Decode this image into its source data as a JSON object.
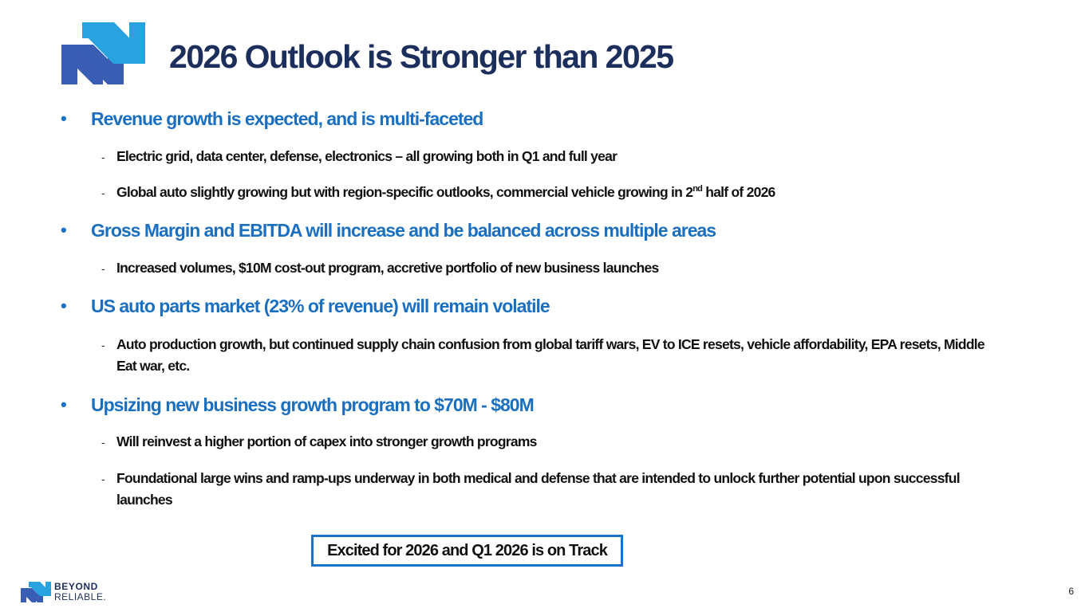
{
  "title": "2026 Outlook is Stronger than 2025",
  "colors": {
    "title": "#1c2e5b",
    "bullet": "#1a6fc0",
    "accent": "#1a73c6",
    "text": "#111111"
  },
  "bullets": [
    {
      "dot": "•",
      "text": "Revenue growth is expected, and is multi-faceted",
      "subs": [
        {
          "dash": "-",
          "text": "Electric grid, data center, defense, electronics – all growing both in Q1 and full year"
        },
        {
          "dash": "-",
          "text_before": "Global auto slightly growing but with region-specific outlooks, commercial vehicle growing in 2",
          "sup": "nd",
          "text_after": " half of 2026"
        }
      ]
    },
    {
      "dot": "•",
      "text": "Gross Margin and EBITDA will increase and be balanced across multiple areas",
      "subs": [
        {
          "dash": "-",
          "text": "Increased volumes, $10M cost-out program, accretive portfolio of new business launches"
        }
      ]
    },
    {
      "dot": "•",
      "text": "US auto parts market (23% of revenue) will remain volatile",
      "subs": [
        {
          "dash": "-",
          "text": "Auto production growth, but continued supply chain confusion from global tariff wars, EV to ICE resets, vehicle affordability, EPA resets, Middle Eat war, etc."
        }
      ]
    },
    {
      "dot": "•",
      "text": "Upsizing new business growth program to $70M - $80M",
      "subs": [
        {
          "dash": "-",
          "text": "Will reinvest a higher portion of capex into stronger growth programs"
        },
        {
          "dash": "-",
          "text": "Foundational large wins and ramp-ups underway in both medical and defense that are intended to unlock further potential upon successful launches"
        }
      ]
    }
  ],
  "callout": "Excited for 2026 and Q1 2026 is on Track",
  "footer": {
    "logo_line1": "BEYOND",
    "logo_line2": "RELIABLE.",
    "logo_icon": "nn-logo-icon"
  },
  "header_logo_icon": "nn-logo-icon",
  "page_number": "6"
}
